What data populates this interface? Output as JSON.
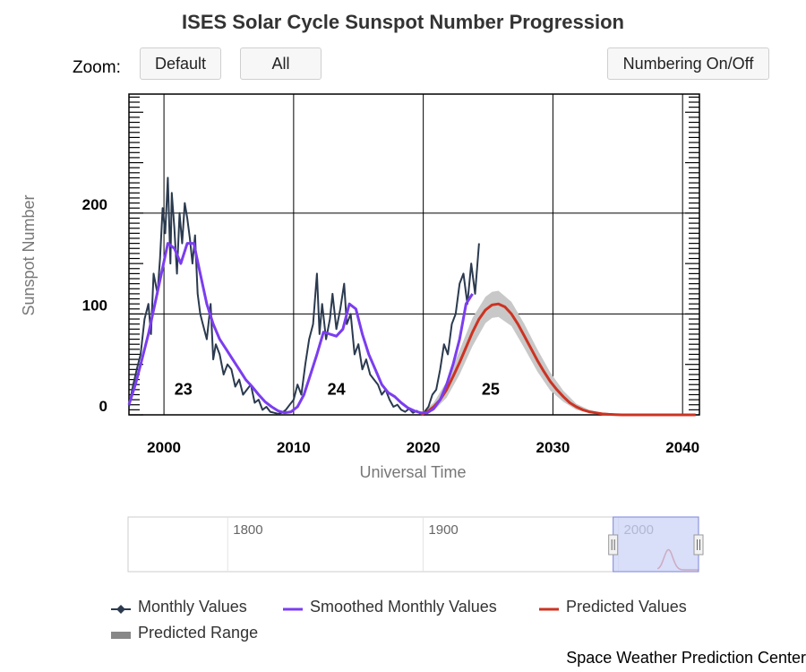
{
  "title": "ISES Solar Cycle Sunspot Number Progression",
  "zoom": {
    "label": "Zoom:",
    "buttons": [
      "Default",
      "All"
    ]
  },
  "numbering_button": "Numbering On/Off",
  "footer": "Space Weather Prediction Center",
  "colors": {
    "monthly": "#2b3a4f",
    "smoothed": "#7b3df0",
    "predicted": "#cc3322",
    "range": "#c8c8c8",
    "navigator_fill": "#ccd3f7"
  },
  "chart_data": {
    "type": "line",
    "title": "ISES Solar Cycle Sunspot Number Progression",
    "xlabel": "Universal Time",
    "ylabel": "Sunspot Number",
    "xlim": [
      1997.3,
      2041.3
    ],
    "ylim": [
      0,
      300
    ],
    "x_ticks": [
      "2000",
      "2010",
      "2020",
      "2030",
      "2040"
    ],
    "y_ticks": [
      "0",
      "100",
      "200"
    ],
    "cycle_labels": [
      {
        "label": "23",
        "x": 2001.5,
        "y": 20
      },
      {
        "label": "24",
        "x": 2013.3,
        "y": 20
      },
      {
        "label": "25",
        "x": 2025.2,
        "y": 20
      }
    ],
    "series": [
      {
        "name": "Monthly Values",
        "x": [
          1997.3,
          1997.6,
          1997.9,
          1998.2,
          1998.5,
          1998.8,
          1999.0,
          1999.2,
          1999.5,
          1999.7,
          1999.9,
          2000.1,
          2000.3,
          2000.5,
          2000.6,
          2000.8,
          2001.0,
          2001.2,
          2001.4,
          2001.6,
          2001.8,
          2002.0,
          2002.2,
          2002.4,
          2002.6,
          2002.8,
          2003.0,
          2003.3,
          2003.6,
          2003.8,
          2004.0,
          2004.3,
          2004.6,
          2004.9,
          2005.2,
          2005.5,
          2005.8,
          2006.1,
          2006.4,
          2006.7,
          2007.0,
          2007.3,
          2007.6,
          2007.9,
          2008.2,
          2008.5,
          2008.8,
          2009.1,
          2009.4,
          2009.7,
          2010.0,
          2010.3,
          2010.6,
          2010.9,
          2011.2,
          2011.5,
          2011.8,
          2012.0,
          2012.2,
          2012.5,
          2012.8,
          2013.0,
          2013.3,
          2013.6,
          2013.9,
          2014.1,
          2014.4,
          2014.7,
          2015.0,
          2015.3,
          2015.6,
          2015.9,
          2016.2,
          2016.5,
          2016.8,
          2017.1,
          2017.4,
          2017.7,
          2018.0,
          2018.3,
          2018.6,
          2018.9,
          2019.2,
          2019.5,
          2019.8,
          2020.1,
          2020.4,
          2020.7,
          2021.0,
          2021.3,
          2021.6,
          2021.9,
          2022.2,
          2022.5,
          2022.8,
          2023.1,
          2023.4,
          2023.7,
          2024.0,
          2024.3
        ],
        "values": [
          8,
          28,
          45,
          60,
          95,
          110,
          80,
          140,
          120,
          155,
          205,
          180,
          235,
          150,
          220,
          185,
          140,
          200,
          170,
          210,
          195,
          175,
          150,
          178,
          120,
          100,
          90,
          75,
          110,
          55,
          70,
          60,
          40,
          50,
          45,
          28,
          35,
          20,
          25,
          30,
          12,
          15,
          5,
          8,
          3,
          2,
          1,
          2,
          5,
          10,
          15,
          30,
          20,
          50,
          75,
          90,
          140,
          80,
          110,
          75,
          95,
          120,
          85,
          105,
          130,
          90,
          100,
          60,
          70,
          45,
          55,
          40,
          35,
          30,
          20,
          25,
          15,
          8,
          10,
          5,
          3,
          6,
          2,
          4,
          1,
          3,
          8,
          20,
          25,
          45,
          70,
          60,
          90,
          100,
          130,
          140,
          110,
          150,
          120,
          170
        ]
      },
      {
        "name": "Smoothed Monthly Values",
        "x": [
          1997.3,
          1997.8,
          1998.3,
          1998.8,
          1999.3,
          1999.8,
          2000.3,
          2000.8,
          2001.3,
          2001.8,
          2002.3,
          2002.8,
          2003.3,
          2003.8,
          2004.3,
          2004.8,
          2005.3,
          2005.8,
          2006.3,
          2006.8,
          2007.3,
          2007.8,
          2008.3,
          2008.8,
          2009.3,
          2009.8,
          2010.3,
          2010.8,
          2011.3,
          2011.8,
          2012.3,
          2012.8,
          2013.3,
          2013.8,
          2014.3,
          2014.8,
          2015.3,
          2015.8,
          2016.3,
          2016.8,
          2017.3,
          2017.8,
          2018.3,
          2018.8,
          2019.3,
          2019.8,
          2020.3,
          2020.8,
          2021.3,
          2021.8,
          2022.3,
          2022.8,
          2023.3,
          2023.8
        ],
        "values": [
          10,
          30,
          55,
          80,
          110,
          140,
          170,
          165,
          150,
          170,
          170,
          140,
          110,
          90,
          75,
          65,
          55,
          45,
          35,
          28,
          20,
          13,
          8,
          4,
          2,
          3,
          8,
          20,
          40,
          60,
          82,
          80,
          78,
          85,
          110,
          105,
          80,
          60,
          45,
          30,
          22,
          18,
          12,
          7,
          4,
          2,
          2,
          6,
          15,
          30,
          50,
          75,
          110,
          120
        ]
      },
      {
        "name": "Predicted Values",
        "x": [
          2019.8,
          2020.3,
          2020.8,
          2021.3,
          2021.8,
          2022.3,
          2022.8,
          2023.3,
          2023.8,
          2024.3,
          2024.8,
          2025.3,
          2025.8,
          2026.3,
          2026.8,
          2027.3,
          2027.8,
          2028.3,
          2028.8,
          2029.3,
          2029.8,
          2030.3,
          2030.8,
          2031.3,
          2031.8,
          2032.3,
          2032.8,
          2033.3,
          2033.8,
          2034.3,
          2034.8,
          2035.3,
          2036.0,
          2037.0,
          2038.0,
          2039.0,
          2040.0,
          2041.0
        ],
        "values": [
          0,
          3,
          8,
          15,
          25,
          38,
          52,
          67,
          82,
          95,
          104,
          109,
          110,
          107,
          100,
          90,
          78,
          66,
          54,
          43,
          33,
          25,
          18,
          12,
          8,
          5,
          3,
          2,
          1,
          0.5,
          0.3,
          0,
          0,
          0,
          0,
          0,
          0,
          0
        ]
      },
      {
        "name": "Predicted Range",
        "x": [
          2019.8,
          2020.8,
          2021.8,
          2022.8,
          2023.8,
          2024.8,
          2025.3,
          2025.8,
          2026.8,
          2027.8,
          2028.8,
          2029.8,
          2030.8,
          2031.8,
          2032.8,
          2033.8,
          2035.0
        ],
        "lower": [
          0,
          4,
          17,
          40,
          68,
          91,
          96,
          97,
          88,
          66,
          43,
          24,
          13,
          5,
          2,
          0,
          0
        ],
        "upper": [
          2,
          12,
          33,
          64,
          96,
          117,
          122,
          123,
          112,
          90,
          65,
          42,
          24,
          11,
          5,
          2,
          0
        ]
      }
    ]
  },
  "navigator": {
    "labels": [
      "1800",
      "1900",
      "2000"
    ],
    "label_years": [
      1800,
      1900,
      2000
    ],
    "xlim": [
      1749,
      2041
    ],
    "window": [
      1997.3,
      2041
    ]
  },
  "legend": [
    {
      "name": "Monthly Values",
      "symbol": "line-diamond",
      "color": "#2b3a4f"
    },
    {
      "name": "Smoothed Monthly Values",
      "symbol": "line",
      "color": "#7b3df0"
    },
    {
      "name": "Predicted Values",
      "symbol": "line",
      "color": "#cc3322"
    },
    {
      "name": "Predicted Range",
      "symbol": "bar",
      "color": "#888888"
    }
  ]
}
